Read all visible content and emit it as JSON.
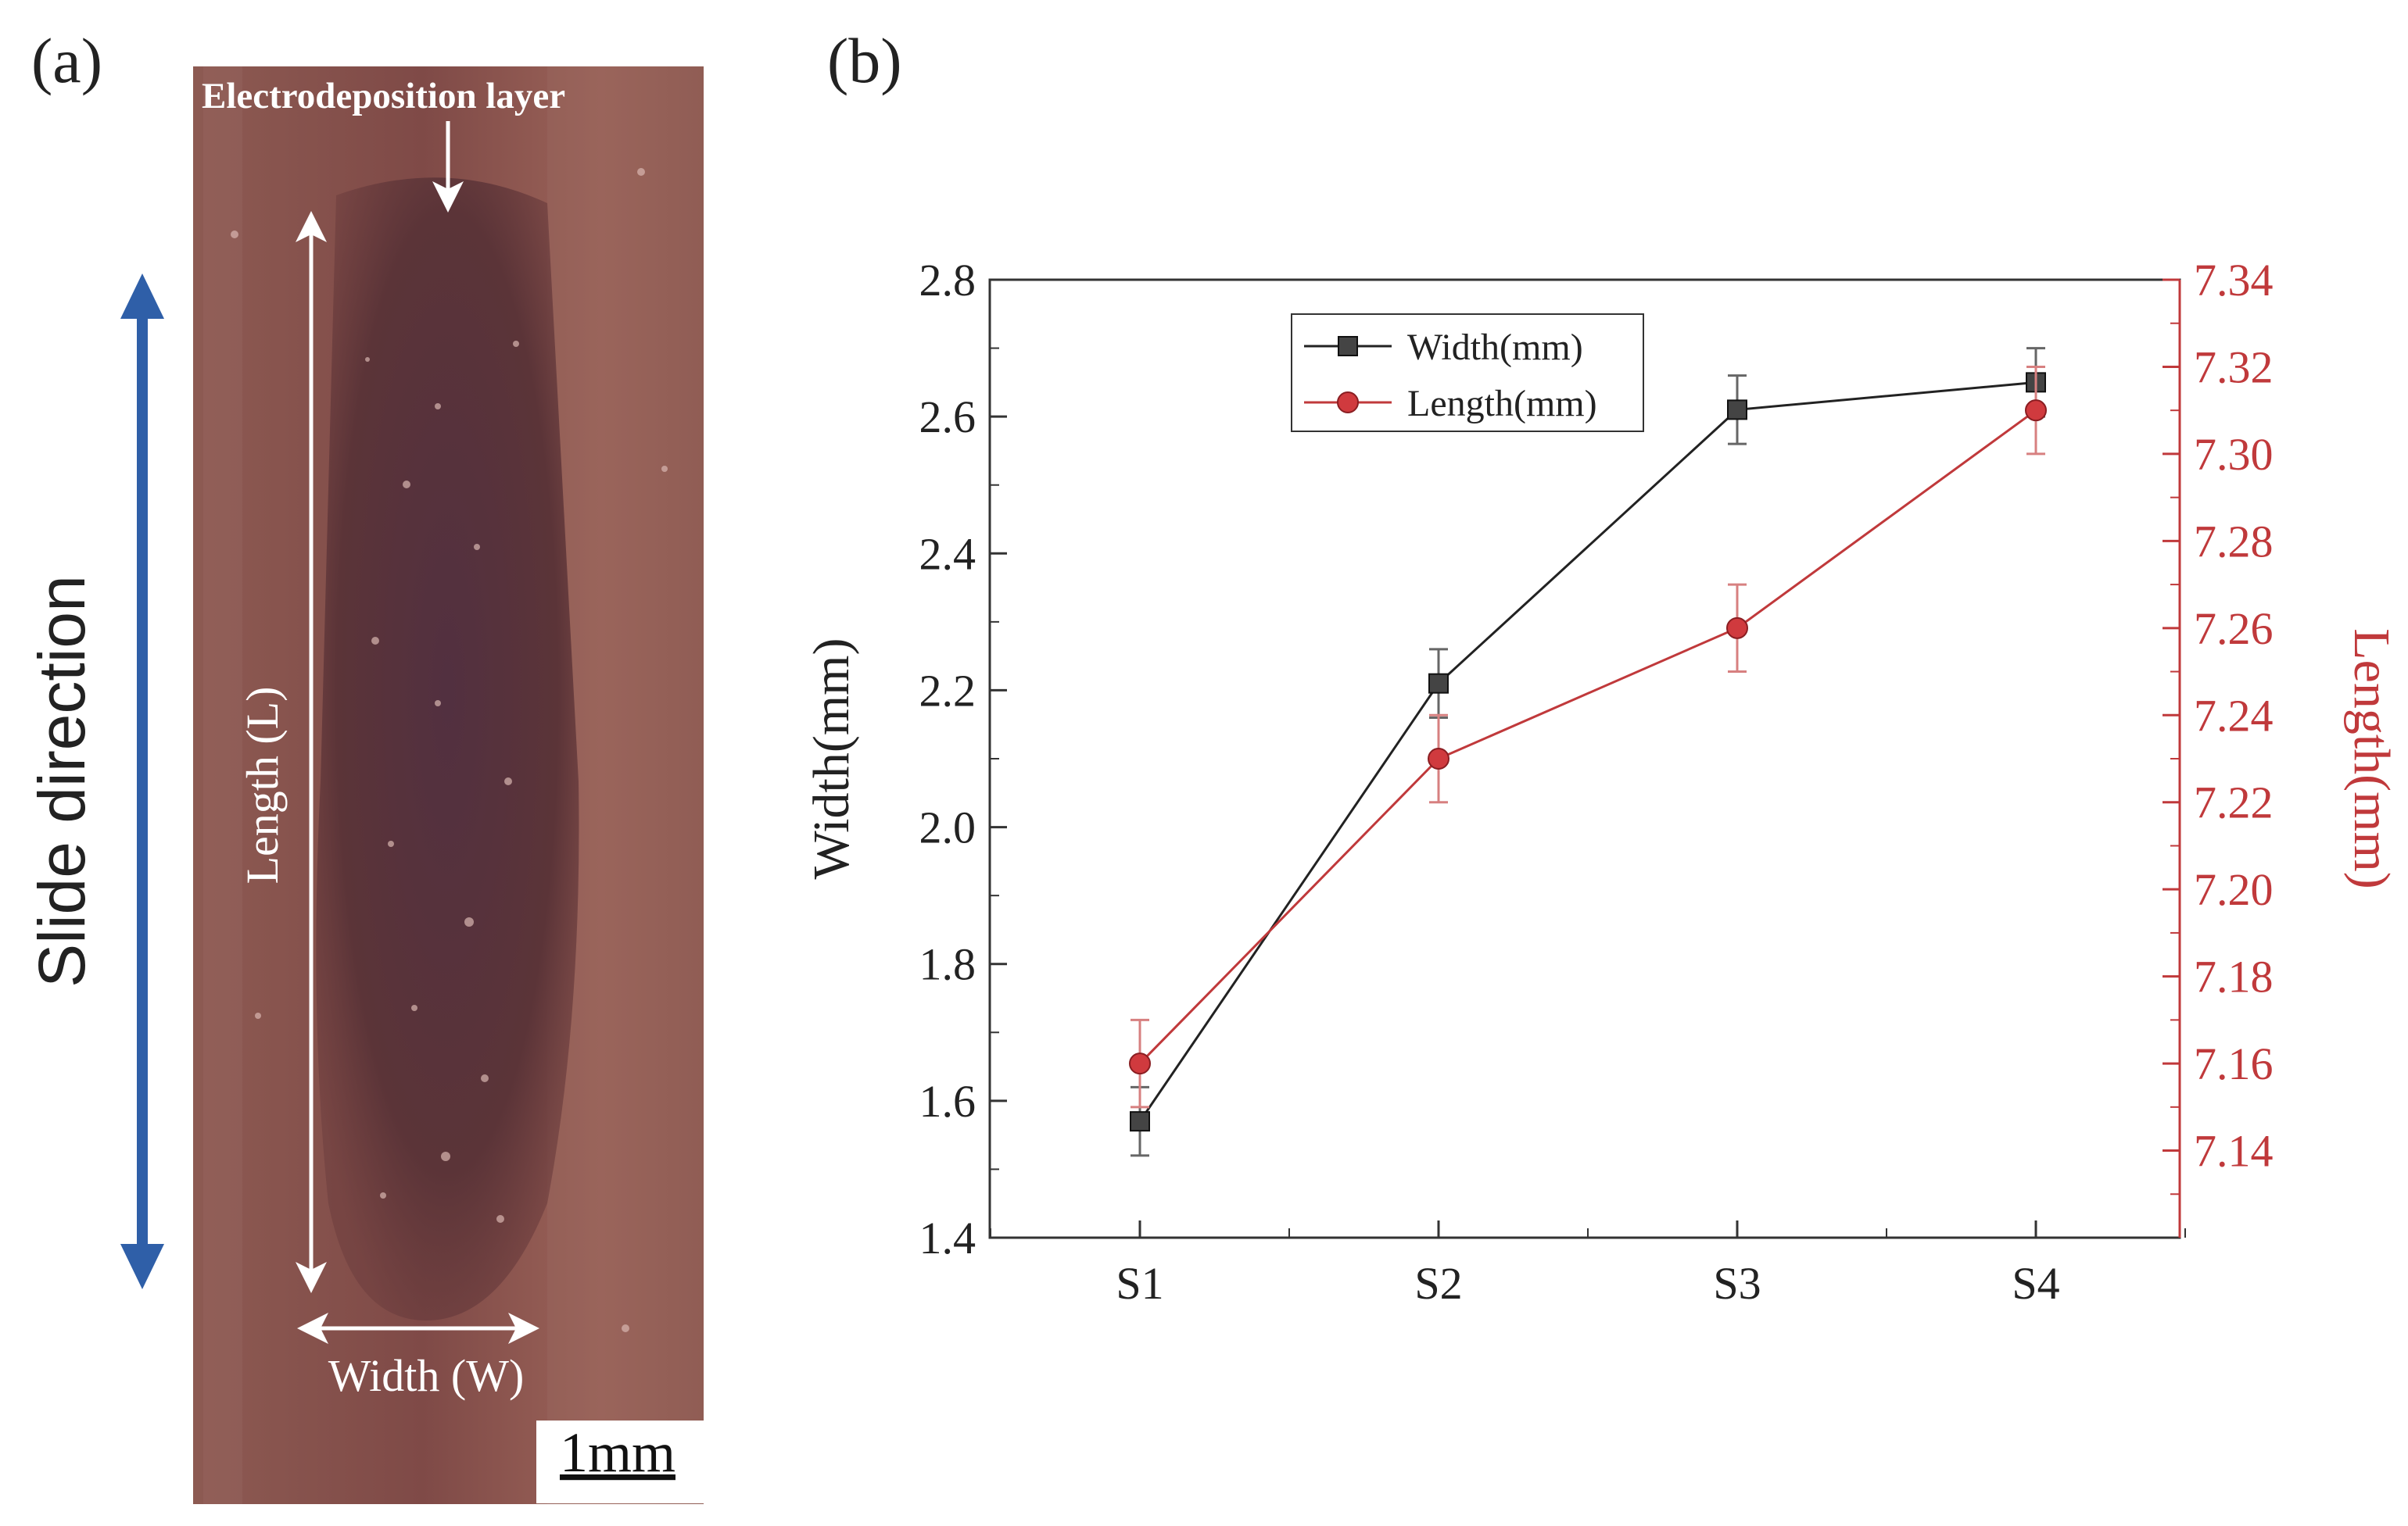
{
  "panel_a": {
    "label": "(a)",
    "slide_label": "Slide direction",
    "layer_label": "Electrodeposition layer",
    "length_label": "Length (L)",
    "width_label": "Width (W)",
    "scale_label": "1mm",
    "colors": {
      "arrow": "#2f5fa8",
      "substrate": "#8a5046",
      "wear_track": "#5a323a"
    }
  },
  "panel_b": {
    "label": "(b)"
  },
  "chart_data": {
    "type": "line",
    "categories": [
      "S1",
      "S2",
      "S3",
      "S4"
    ],
    "y_left": {
      "label": "Width(mm)",
      "ylim": [
        1.4,
        2.8
      ],
      "ticks": [
        "1.4",
        "1.6",
        "1.8",
        "2.0",
        "2.2",
        "2.4",
        "2.6",
        "2.8"
      ]
    },
    "y_right": {
      "label": "Length(mm)",
      "ylim": [
        7.12,
        7.34
      ],
      "ticks": [
        "7.14",
        "7.16",
        "7.18",
        "7.20",
        "7.22",
        "7.24",
        "7.26",
        "7.28",
        "7.30",
        "7.32",
        "7.34"
      ]
    },
    "series": [
      {
        "name": "Width(mm)",
        "axis": "left",
        "values": [
          1.57,
          2.21,
          2.61,
          2.65
        ],
        "errors": [
          0.05,
          0.05,
          0.05,
          0.05
        ],
        "color": "#222222",
        "marker": "square"
      },
      {
        "name": "Length(mm)",
        "axis": "right",
        "values": [
          7.16,
          7.23,
          7.26,
          7.31
        ],
        "errors": [
          0.01,
          0.01,
          0.01,
          0.01
        ],
        "color": "#c0393b",
        "marker": "circle"
      }
    ],
    "legend": "top-left",
    "grid": false
  }
}
